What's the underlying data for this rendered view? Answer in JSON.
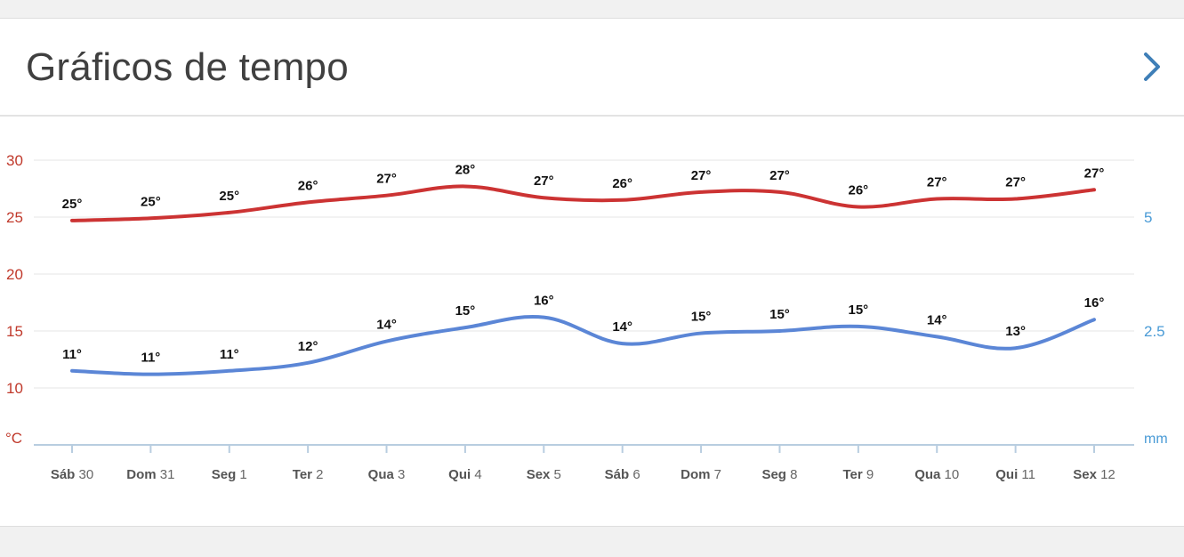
{
  "header": {
    "title": "Gráficos de tempo",
    "chevron_icon": "chevron-right-icon"
  },
  "colors": {
    "max_series": "#cc3333",
    "min_series": "#5b86d6",
    "left_axis": "#c0392b",
    "right_axis": "#4a9bd6",
    "grid": "#e6e6e6",
    "axis_line": "#b8cde0",
    "chevron": "#3f7fb8"
  },
  "chart_data": {
    "type": "line",
    "categories": [
      {
        "day": "Sáb",
        "date": "30"
      },
      {
        "day": "Dom",
        "date": "31"
      },
      {
        "day": "Seg",
        "date": "1"
      },
      {
        "day": "Ter",
        "date": "2"
      },
      {
        "day": "Qua",
        "date": "3"
      },
      {
        "day": "Qui",
        "date": "4"
      },
      {
        "day": "Sex",
        "date": "5"
      },
      {
        "day": "Sáb",
        "date": "6"
      },
      {
        "day": "Dom",
        "date": "7"
      },
      {
        "day": "Seg",
        "date": "8"
      },
      {
        "day": "Ter",
        "date": "9"
      },
      {
        "day": "Qua",
        "date": "10"
      },
      {
        "day": "Qui",
        "date": "11"
      },
      {
        "day": "Sex",
        "date": "12"
      }
    ],
    "series": [
      {
        "values": [
          24.7,
          24.9,
          25.4,
          26.3,
          26.9,
          27.7,
          26.7,
          26.5,
          27.2,
          27.2,
          25.9,
          26.6,
          26.6,
          27.4
        ],
        "labels": [
          "25°",
          "25°",
          "25°",
          "26°",
          "27°",
          "28°",
          "27°",
          "26°",
          "27°",
          "27°",
          "26°",
          "27°",
          "27°",
          "27°"
        ],
        "color": "#cc3333"
      },
      {
        "values": [
          11.5,
          11.2,
          11.5,
          12.2,
          14.1,
          15.3,
          16.2,
          13.9,
          14.8,
          15.0,
          15.4,
          14.5,
          13.5,
          16.0
        ],
        "labels": [
          "11°",
          "11°",
          "11°",
          "12°",
          "14°",
          "15°",
          "16°",
          "14°",
          "15°",
          "15°",
          "15°",
          "14°",
          "13°",
          "16°"
        ],
        "color": "#5b86d6"
      }
    ],
    "y_left": {
      "ticks": [
        "30",
        "25",
        "20",
        "15",
        "10"
      ],
      "unit": "°C",
      "range": [
        5,
        30
      ]
    },
    "y_right": {
      "ticks": [
        "5",
        "2.5"
      ],
      "unit": "mm"
    },
    "grid": true
  }
}
